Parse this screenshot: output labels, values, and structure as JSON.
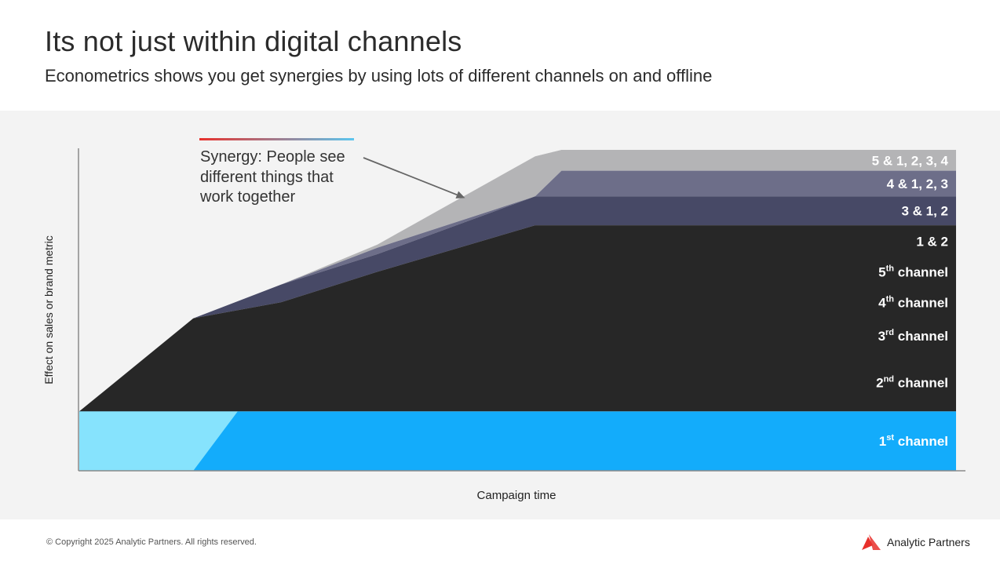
{
  "header": {
    "title": "Its not just within digital channels",
    "subtitle": "Econometrics shows you get synergies by using lots of different channels on and offline"
  },
  "footer": {
    "copyright": "© Copyright 2025 Analytic Partners. All rights reserved.",
    "brand": "Analytic Partners"
  },
  "colors": {
    "accent_red": "#e8302b",
    "accent_blue": "#5bc6ef",
    "panel_bg": "#f3f3f3"
  },
  "chart_data": {
    "type": "area",
    "title": "",
    "xlabel": "Campaign time",
    "ylabel": "Effect on sales or brand metric",
    "x": [
      0,
      13,
      23,
      34,
      52,
      55,
      100
    ],
    "xlim": [
      0,
      100
    ],
    "ylim": [
      0,
      100
    ],
    "grid": false,
    "annotation": {
      "lines": [
        "Synergy: People see",
        "different things that",
        "work together"
      ],
      "arrow_to": [
        44,
        85
      ]
    },
    "series": [
      {
        "name": "1st channel",
        "label": "1",
        "sup": "st",
        "suffix": " channel",
        "color": "#13acfb",
        "values": [
          18.5,
          18.5,
          18.5,
          18.5,
          18.5,
          18.5,
          18.5
        ]
      },
      {
        "name": "2nd channel",
        "label": "2",
        "sup": "nd",
        "suffix": " channel",
        "color": "#86e3fd",
        "values": [
          0,
          0,
          36.5,
          36.5,
          36.5,
          36.5,
          36.5
        ]
      },
      {
        "name": "3rd channel",
        "label": "3",
        "sup": "rd",
        "suffix": " channel",
        "color": "#8668ec",
        "values": [
          0,
          0,
          36.5,
          47.5,
          47.5,
          47.5,
          47.5
        ]
      },
      {
        "name": "4th channel",
        "label": "4",
        "sup": "th",
        "suffix": " channel",
        "color": "#26cdb1",
        "values": [
          0,
          0,
          36.5,
          47.5,
          57.5,
          57.5,
          57.5
        ]
      },
      {
        "name": "5th channel",
        "label": "5",
        "sup": "th",
        "suffix": " channel",
        "color": "#8a8b8d",
        "values": [
          0,
          0,
          36.5,
          47.5,
          65.5,
          66.5,
          66.5
        ]
      },
      {
        "name": "1 & 2",
        "label": "1 & 2",
        "sup": "",
        "suffix": "",
        "color": "#272727",
        "values": [
          18.5,
          47.5,
          52.5,
          62,
          76.5,
          76.5,
          76.5
        ]
      },
      {
        "name": "3 & 1, 2",
        "label": "3 & 1, 2",
        "sup": "",
        "suffix": "",
        "color": "#474966",
        "values": [
          18.5,
          47.5,
          58,
          67.5,
          85.5,
          85.5,
          85.5
        ]
      },
      {
        "name": "4 & 1, 2, 3",
        "label": "4 & 1, 2, 3",
        "sup": "",
        "suffix": "",
        "color": "#6d6e89",
        "values": [
          18.5,
          47.5,
          58,
          69.5,
          85.5,
          93.5,
          93.5
        ]
      },
      {
        "name": "5 & 1, 2, 3, 4",
        "label": "5 & 1, 2, 3, 4",
        "sup": "",
        "suffix": "",
        "color": "#b4b4b6",
        "values": [
          18.5,
          47.5,
          58,
          70.5,
          98,
          100,
          100
        ]
      }
    ]
  }
}
